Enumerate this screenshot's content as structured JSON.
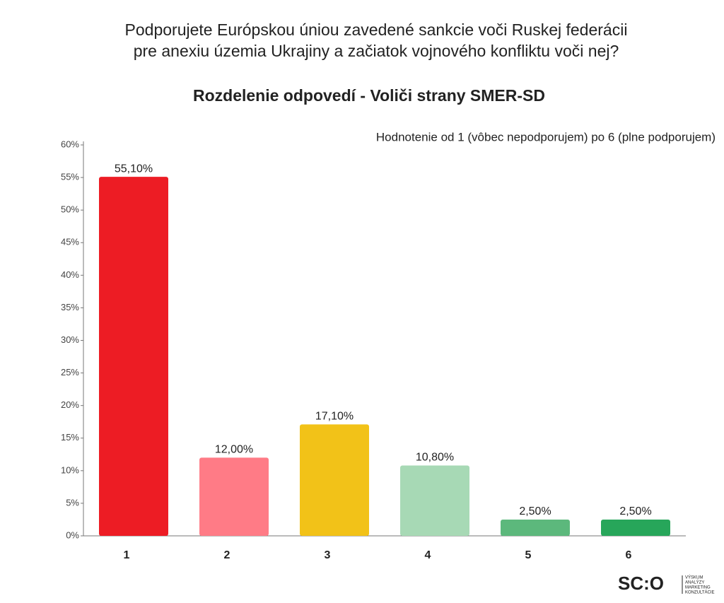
{
  "chart_data": {
    "type": "bar",
    "question": [
      "Podporujete Európskou úniou zavedené sankcie voči Ruskej federácii",
      "pre anexiu územia Ukrajiny a začiatok vojnového konfliktu voči nej?"
    ],
    "title": "Rozdelenie odpovedí - Voliči strany SMER-SD",
    "subtitle": "Hodnotenie  od 1 (vôbec nepodporujem) po 6 (plne podporujem)",
    "categories": [
      "1",
      "2",
      "3",
      "4",
      "5",
      "6"
    ],
    "values": [
      55.1,
      12.0,
      17.1,
      10.8,
      2.5,
      2.5
    ],
    "value_labels": [
      "55,10%",
      "12,00%",
      "17,10%",
      "10,80%",
      "2,50%",
      "2,50%"
    ],
    "colors": [
      "#ed1c24",
      "#ff7b86",
      "#f2c218",
      "#a7d9b5",
      "#5cb87c",
      "#27a65a"
    ],
    "ylim": [
      0,
      60
    ],
    "yticks": [
      {
        "value": 0,
        "label": "0%"
      },
      {
        "value": 5,
        "label": "5%"
      },
      {
        "value": 10,
        "label": "10%"
      },
      {
        "value": 15,
        "label": "15%"
      },
      {
        "value": 20,
        "label": "20%"
      },
      {
        "value": 25,
        "label": "25%"
      },
      {
        "value": 30,
        "label": "30%"
      },
      {
        "value": 35,
        "label": "35%"
      },
      {
        "value": 40,
        "label": "40%"
      },
      {
        "value": 45,
        "label": "45%"
      },
      {
        "value": 50,
        "label": "50%"
      },
      {
        "value": 55,
        "label": "55%"
      },
      {
        "value": 60,
        "label": "60%"
      }
    ],
    "grid": false,
    "logo": {
      "text": "SC:O",
      "tagline": [
        "VÝSKUM",
        "ANALÝZY",
        "MARKETING",
        "KONZULTÁCIE"
      ]
    }
  }
}
